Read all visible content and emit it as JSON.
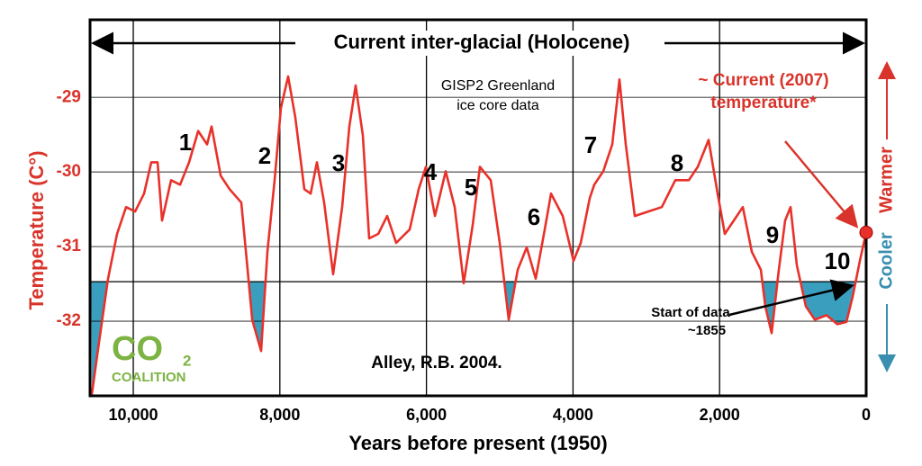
{
  "chart_data": {
    "type": "line",
    "title": "Current inter-glacial (Holocene)",
    "x_label": "Years before present (1950)",
    "y_label": "Temperature (C°)",
    "source_note": [
      "GISP2 Greenland",
      "ice core data"
    ],
    "citation": "Alley, R.B. 2004.",
    "current_note": [
      "~ Current (2007)",
      "temperature*"
    ],
    "start_note": [
      "Start of data",
      "~1855"
    ],
    "warmer_label": "Warmer",
    "cooler_label": "Cooler",
    "logo": {
      "co": "CO",
      "sub": "2",
      "name": "COALITION"
    },
    "period_labels": [
      "1",
      "2",
      "3",
      "4",
      "5",
      "6",
      "7",
      "8",
      "9",
      "10"
    ],
    "xlim": [
      10590,
      0
    ],
    "ylim": [
      -33,
      -27.96
    ],
    "xticks": [
      {
        "value": 10000,
        "label": "10,000"
      },
      {
        "value": 8000,
        "label": "8,000"
      },
      {
        "value": 6000,
        "label": "6,000"
      },
      {
        "value": 4000,
        "label": "4,000"
      },
      {
        "value": 2000,
        "label": "2,000"
      },
      0
    ],
    "yticks": [
      -29,
      -30,
      -31,
      -32
    ],
    "grid": true,
    "threshold": -31.47,
    "fill_color": "#3a9fbf",
    "x": [
      10565,
      10467,
      10344,
      10221,
      10098,
      9975,
      9853,
      9754,
      9668,
      9607,
      9484,
      9361,
      9238,
      9115,
      8993,
      8931,
      8808,
      8686,
      8526,
      8440,
      8378,
      8256,
      8170,
      8071,
      7985,
      7887,
      7789,
      7666,
      7580,
      7494,
      7396,
      7273,
      7150,
      7052,
      6966,
      6867,
      6781,
      6658,
      6536,
      6413,
      6229,
      6106,
      6007,
      5884,
      5737,
      5614,
      5491,
      5369,
      5270,
      5123,
      5000,
      4877,
      4754,
      4631,
      4509,
      4386,
      4300,
      4140,
      3993,
      3894,
      3771,
      3710,
      3587,
      3464,
      3366,
      3280,
      3157,
      2973,
      2789,
      2604,
      2420,
      2297,
      2150,
      2027,
      1929,
      1806,
      1683,
      1560,
      1437,
      1376,
      1290,
      1192,
      1106,
      1032,
      946,
      823,
      700,
      541,
      393,
      270,
      184,
      86,
      0
    ],
    "series": [
      {
        "name": "GISP2",
        "color": "#e8312a",
        "values": [
          -32.98,
          -32.28,
          -31.43,
          -30.83,
          -30.47,
          -30.53,
          -30.29,
          -29.87,
          -29.87,
          -30.65,
          -30.11,
          -30.17,
          -29.87,
          -29.45,
          -29.63,
          -29.39,
          -30.05,
          -30.23,
          -30.41,
          -31.31,
          -31.98,
          -32.4,
          -31.07,
          -30.11,
          -29.14,
          -28.72,
          -29.27,
          -30.23,
          -30.29,
          -29.87,
          -30.41,
          -31.37,
          -30.47,
          -29.39,
          -28.84,
          -29.51,
          -30.89,
          -30.83,
          -30.59,
          -30.95,
          -30.77,
          -30.23,
          -29.93,
          -30.59,
          -29.99,
          -30.47,
          -31.49,
          -30.71,
          -29.93,
          -30.11,
          -30.95,
          -31.98,
          -31.31,
          -31.01,
          -31.43,
          -30.77,
          -30.29,
          -30.59,
          -31.19,
          -30.95,
          -30.35,
          -30.17,
          -29.99,
          -29.63,
          -28.76,
          -29.63,
          -30.59,
          -30.53,
          -30.47,
          -30.11,
          -30.11,
          -29.93,
          -29.57,
          -30.29,
          -30.83,
          -30.65,
          -30.47,
          -31.07,
          -31.31,
          -31.8,
          -32.16,
          -31.31,
          -30.65,
          -30.47,
          -31.25,
          -31.8,
          -31.98,
          -31.92,
          -32.04,
          -32.01,
          -31.67,
          -31.19,
          -30.81
        ]
      }
    ],
    "current_point": {
      "x": 0,
      "value": -30.81
    }
  }
}
